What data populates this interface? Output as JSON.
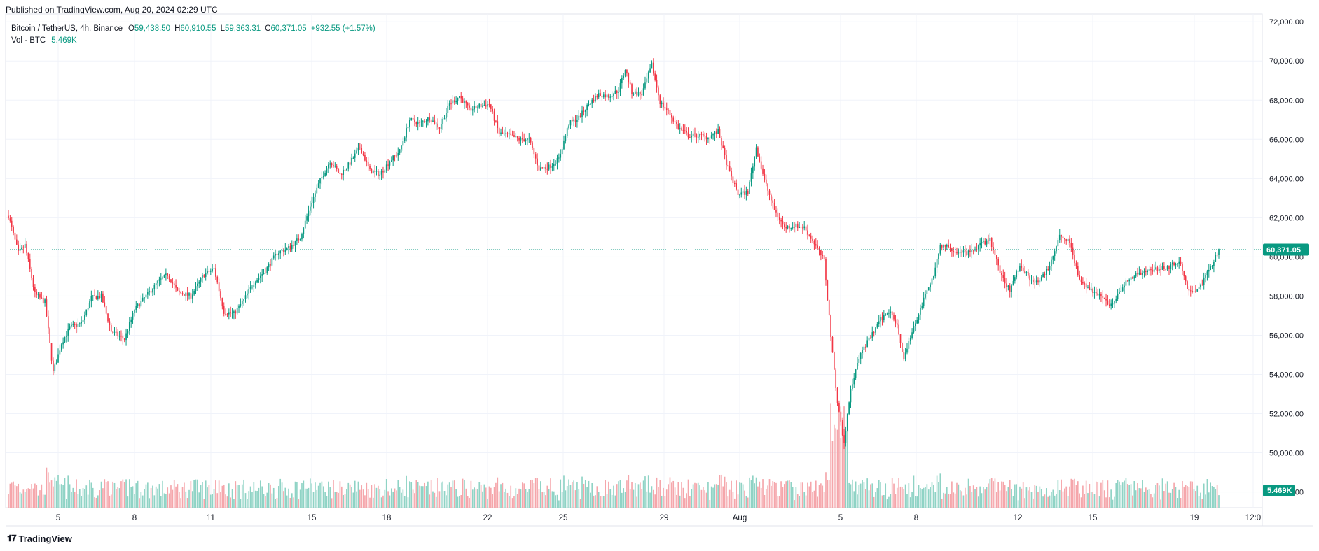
{
  "header": {
    "published": "Published on TradingView.com, Aug 20, 2024 02:29 UTC"
  },
  "legend": {
    "symbol": "Bitcoin / TetherUS, 4h, Binance",
    "open_key": "O",
    "open": "59,438.50",
    "high_key": "H",
    "high": "60,910.55",
    "low_key": "L",
    "low": "59,363.31",
    "close_key": "C",
    "close": "60,371.05",
    "change": "+932.55 (+1.57%)",
    "volume_label": "Vol · BTC",
    "volume_value": "5.469K"
  },
  "colors": {
    "up": "#089981",
    "down": "#f23645",
    "up_vol": "#8fd3c5",
    "down_vol": "#f5a6ab",
    "grid": "#f0f3fa"
  },
  "price_tag": "60,371.05",
  "volume_tag": "5.469K",
  "footer": {
    "brand": "TradingView",
    "logo_icon": "tradingview-logo-icon"
  },
  "chart_data": {
    "type": "candlestick",
    "title": "Bitcoin / TetherUS, 4h, Binance",
    "x_tick_labels": [
      "5",
      "8",
      "11",
      "15",
      "18",
      "22",
      "25",
      "29",
      "Aug",
      "5",
      "8",
      "12",
      "15",
      "19",
      "12:0"
    ],
    "y_tick_labels": [
      "48,000.00",
      "50,000.00",
      "52,000.00",
      "54,000.00",
      "56,000.00",
      "58,000.00",
      "60,000.00",
      "62,000.00",
      "64,000.00",
      "66,000.00",
      "68,000.00",
      "70,000.00",
      "72,000.00"
    ],
    "ylim": [
      47200,
      72400
    ],
    "last_price": 60371.05,
    "path_points": [
      [
        0,
        62100
      ],
      [
        6,
        60200
      ],
      [
        10,
        60600
      ],
      [
        16,
        58100
      ],
      [
        22,
        57700
      ],
      [
        27,
        54100
      ],
      [
        32,
        55600
      ],
      [
        37,
        56400
      ],
      [
        44,
        56600
      ],
      [
        50,
        57900
      ],
      [
        56,
        58000
      ],
      [
        62,
        56200
      ],
      [
        70,
        55800
      ],
      [
        76,
        57300
      ],
      [
        84,
        58100
      ],
      [
        90,
        58700
      ],
      [
        96,
        59100
      ],
      [
        102,
        58200
      ],
      [
        110,
        58000
      ],
      [
        118,
        59100
      ],
      [
        124,
        59400
      ],
      [
        130,
        57200
      ],
      [
        136,
        57100
      ],
      [
        142,
        57800
      ],
      [
        148,
        58700
      ],
      [
        155,
        59300
      ],
      [
        162,
        60200
      ],
      [
        170,
        60500
      ],
      [
        176,
        61000
      ],
      [
        182,
        62600
      ],
      [
        188,
        63900
      ],
      [
        194,
        64900
      ],
      [
        200,
        64200
      ],
      [
        206,
        64800
      ],
      [
        212,
        65600
      ],
      [
        218,
        64400
      ],
      [
        224,
        64200
      ],
      [
        230,
        64900
      ],
      [
        236,
        65400
      ],
      [
        242,
        67000
      ],
      [
        248,
        66800
      ],
      [
        254,
        67100
      ],
      [
        260,
        66600
      ],
      [
        266,
        67800
      ],
      [
        272,
        68200
      ],
      [
        278,
        67500
      ],
      [
        284,
        67700
      ],
      [
        290,
        67800
      ],
      [
        296,
        66300
      ],
      [
        302,
        66200
      ],
      [
        308,
        66000
      ],
      [
        314,
        66000
      ],
      [
        320,
        64500
      ],
      [
        326,
        64600
      ],
      [
        332,
        65000
      ],
      [
        338,
        66800
      ],
      [
        344,
        67100
      ],
      [
        350,
        67800
      ],
      [
        356,
        68300
      ],
      [
        362,
        68200
      ],
      [
        368,
        68500
      ],
      [
        372,
        69600
      ],
      [
        376,
        68400
      ],
      [
        382,
        68300
      ],
      [
        388,
        69800
      ],
      [
        393,
        67900
      ],
      [
        398,
        67400
      ],
      [
        404,
        66600
      ],
      [
        410,
        66200
      ],
      [
        416,
        66200
      ],
      [
        422,
        66100
      ],
      [
        428,
        66400
      ],
      [
        434,
        64500
      ],
      [
        440,
        63200
      ],
      [
        446,
        63300
      ],
      [
        451,
        65600
      ],
      [
        456,
        63900
      ],
      [
        462,
        62400
      ],
      [
        468,
        61500
      ],
      [
        474,
        61600
      ],
      [
        480,
        61500
      ],
      [
        486,
        60700
      ],
      [
        492,
        59800
      ],
      [
        496,
        56000
      ],
      [
        500,
        52500
      ],
      [
        504,
        50500
      ],
      [
        508,
        53300
      ],
      [
        514,
        55100
      ],
      [
        520,
        55900
      ],
      [
        526,
        56800
      ],
      [
        532,
        57300
      ],
      [
        536,
        56500
      ],
      [
        540,
        54800
      ],
      [
        546,
        56400
      ],
      [
        552,
        57800
      ],
      [
        558,
        59100
      ],
      [
        562,
        60600
      ],
      [
        568,
        60400
      ],
      [
        574,
        60200
      ],
      [
        580,
        60200
      ],
      [
        586,
        60600
      ],
      [
        592,
        60900
      ],
      [
        598,
        59200
      ],
      [
        604,
        58300
      ],
      [
        610,
        59600
      ],
      [
        616,
        58900
      ],
      [
        622,
        58700
      ],
      [
        628,
        59600
      ],
      [
        634,
        61100
      ],
      [
        640,
        60800
      ],
      [
        646,
        58800
      ],
      [
        652,
        58300
      ],
      [
        658,
        58100
      ],
      [
        664,
        57500
      ],
      [
        670,
        58200
      ],
      [
        676,
        58900
      ],
      [
        682,
        59200
      ],
      [
        688,
        59300
      ],
      [
        694,
        59400
      ],
      [
        700,
        59500
      ],
      [
        706,
        59800
      ],
      [
        712,
        58200
      ],
      [
        718,
        58400
      ],
      [
        722,
        59000
      ],
      [
        726,
        59600
      ],
      [
        730,
        60371
      ]
    ]
  }
}
